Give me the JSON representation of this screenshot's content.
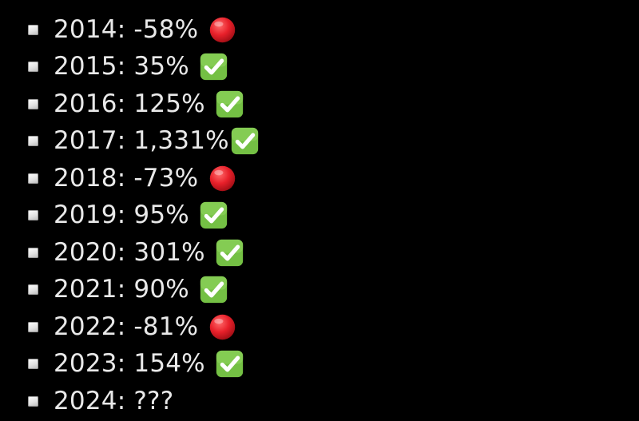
{
  "items": [
    {
      "label": "2014: -58%",
      "status": "red-circle-icon",
      "statusColor": "#e8202a"
    },
    {
      "label": "2015: 35%",
      "status": "check-mark-button-icon",
      "statusColor": "#74c044"
    },
    {
      "label": "2016: 125%",
      "status": "check-mark-button-icon",
      "statusColor": "#74c044"
    },
    {
      "label": "2017: 1,331%",
      "status": "check-mark-button-icon",
      "statusColor": "#74c044"
    },
    {
      "label": "2018: -73%",
      "status": "red-circle-icon",
      "statusColor": "#e8202a"
    },
    {
      "label": "2019: 95%",
      "status": "check-mark-button-icon",
      "statusColor": "#74c044"
    },
    {
      "label": "2020: 301%",
      "status": "check-mark-button-icon",
      "statusColor": "#74c044"
    },
    {
      "label": "2021: 90%",
      "status": "check-mark-button-icon",
      "statusColor": "#74c044"
    },
    {
      "label": "2022: -81%",
      "status": "red-circle-icon",
      "statusColor": "#e8202a"
    },
    {
      "label": "2023: 154%",
      "status": "check-mark-button-icon",
      "statusColor": "#74c044"
    },
    {
      "label": "2024: ???",
      "status": "",
      "statusColor": ""
    }
  ],
  "colors": {
    "background": "#000000",
    "text": "#e9e9e9"
  }
}
